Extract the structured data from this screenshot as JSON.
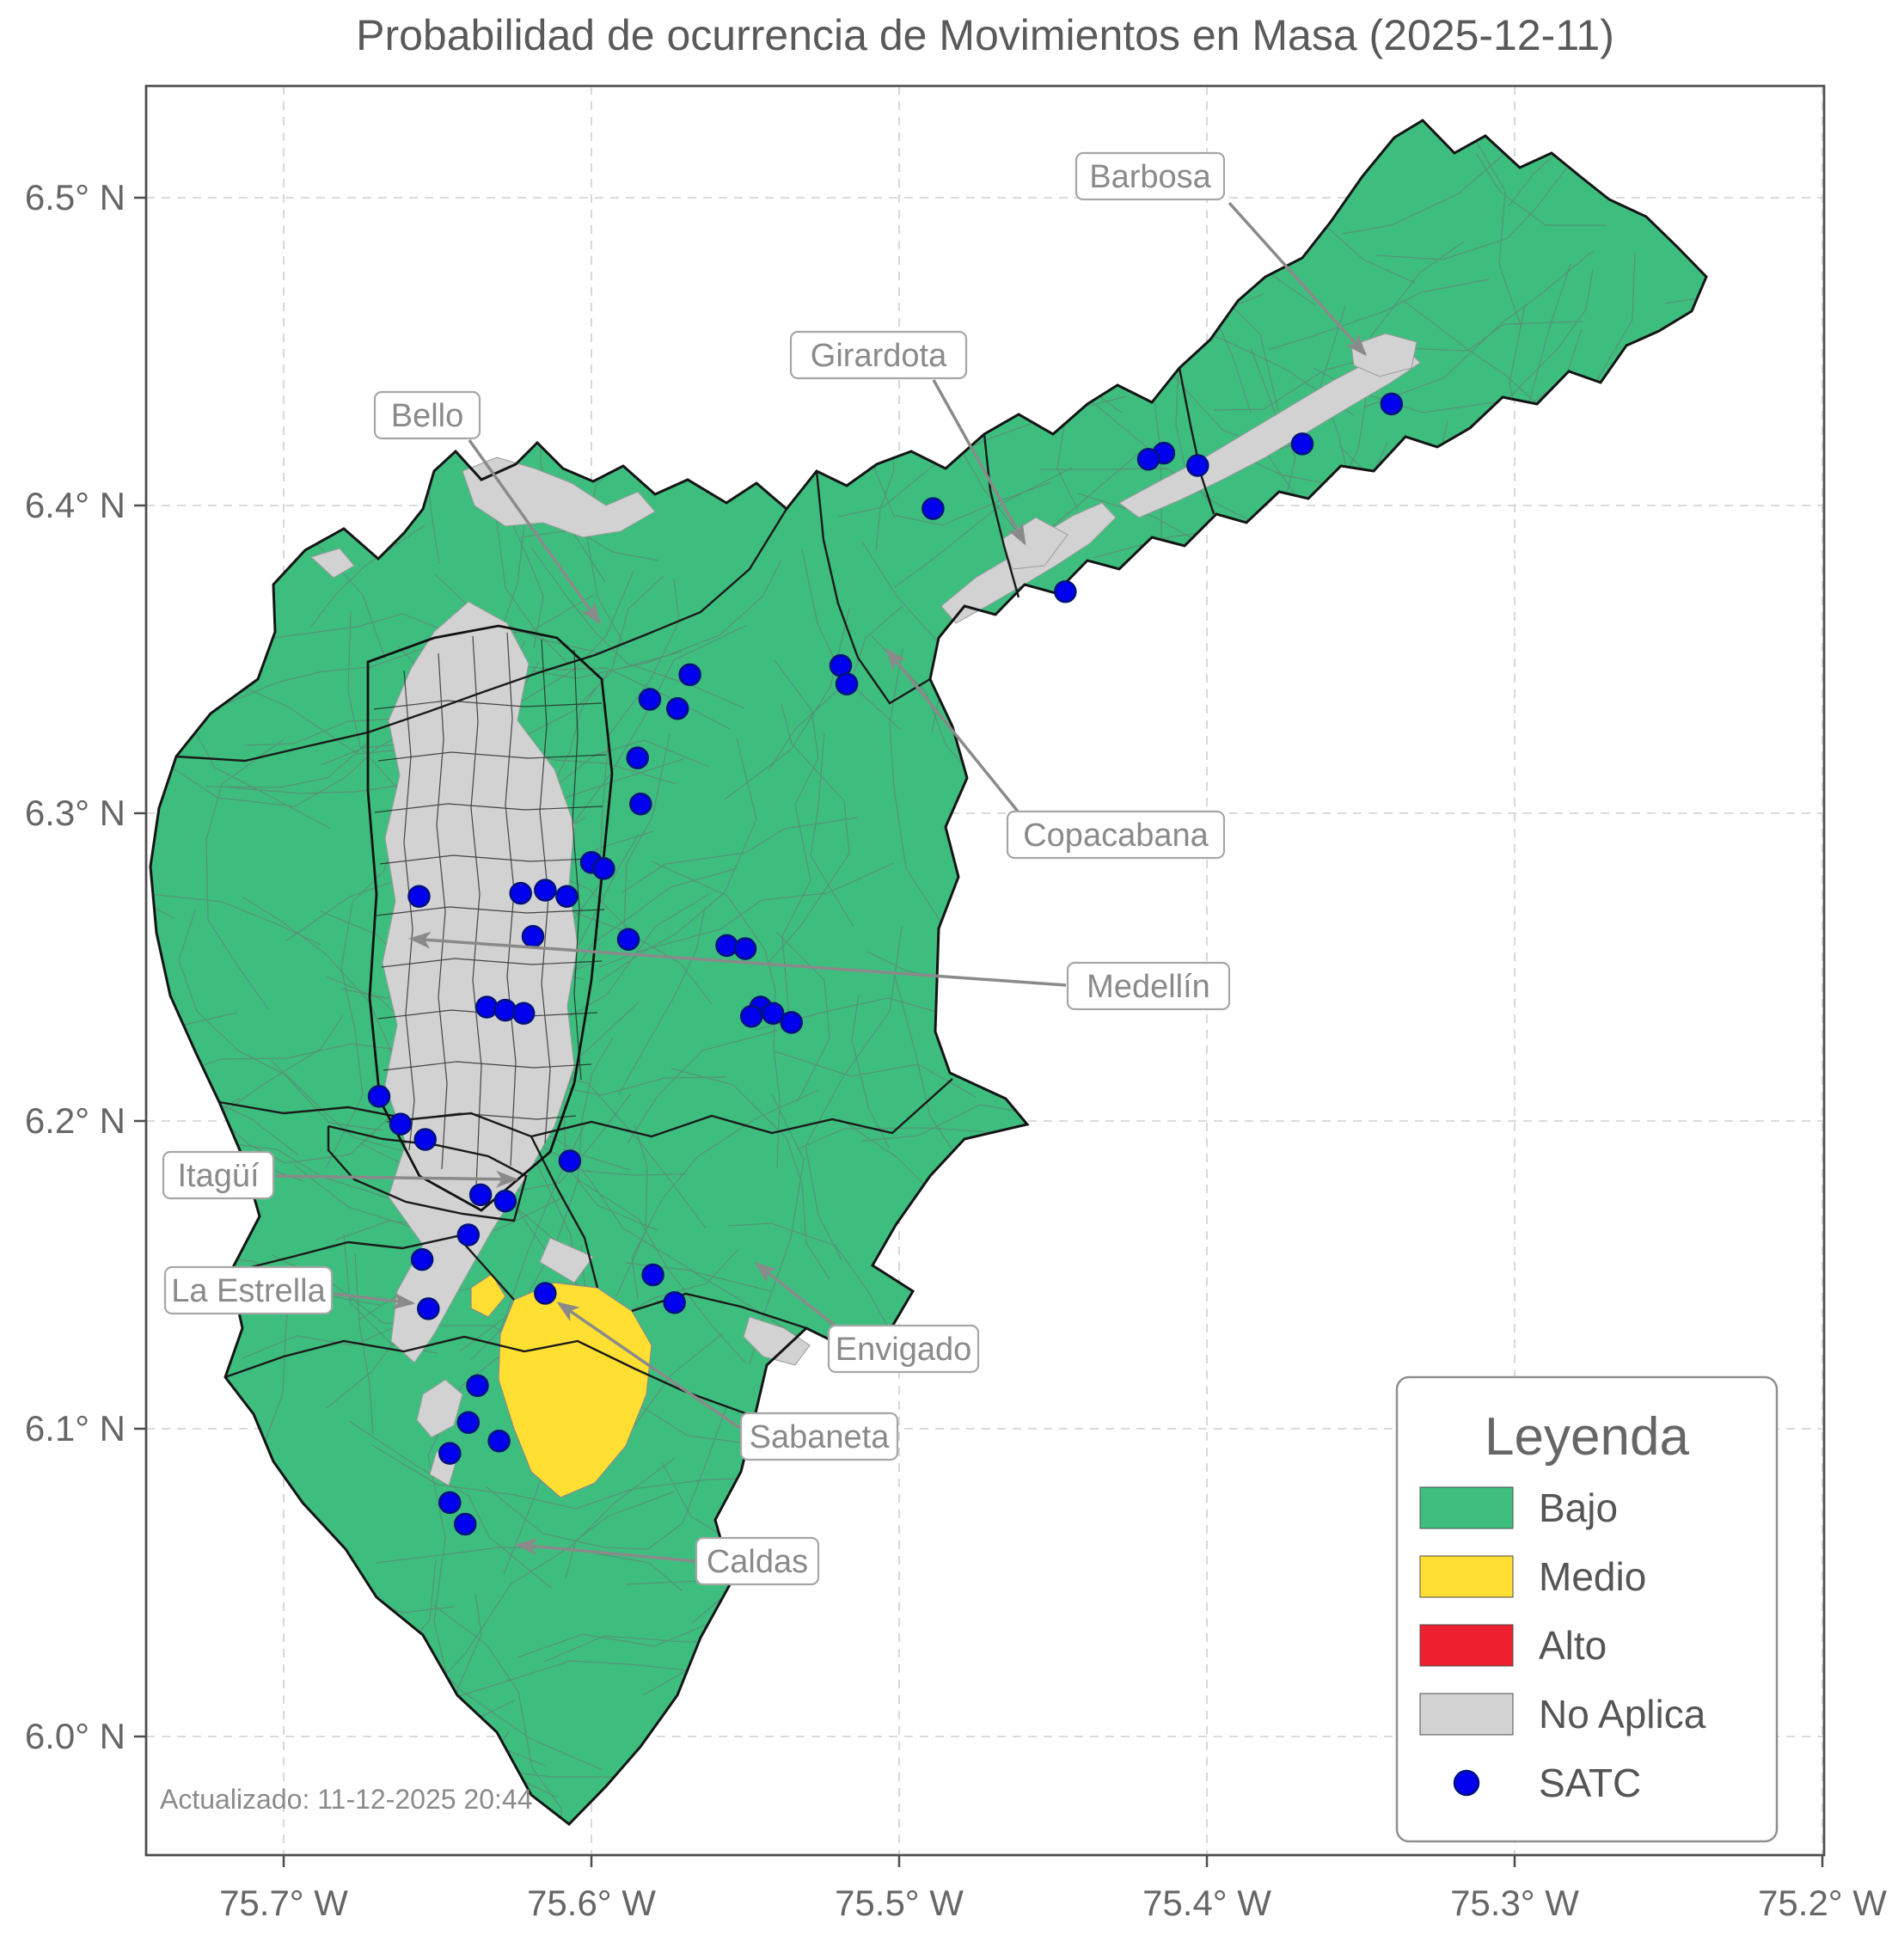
{
  "title": "Probabilidad de ocurrencia de Movimientos en Masa (2025-12-11)",
  "updated_text": "Actualizado: 11-12-2025 20:44",
  "axes": {
    "x_ticks": [
      "75.7° W",
      "75.6° W",
      "75.5° W",
      "75.4° W",
      "75.3° W",
      "75.2° W"
    ],
    "y_ticks": [
      "6.5° N",
      "6.4° N",
      "6.3° N",
      "6.2° N",
      "6.1° N",
      "6.0° N"
    ]
  },
  "legend": {
    "title": "Leyenda",
    "entries": [
      {
        "label": "Bajo"
      },
      {
        "label": "Medio"
      },
      {
        "label": "Alto"
      },
      {
        "label": "No Aplica"
      },
      {
        "label": "SATC"
      }
    ]
  },
  "annotations": [
    {
      "label": "Barbosa"
    },
    {
      "label": "Girardota"
    },
    {
      "label": "Bello"
    },
    {
      "label": "Copacabana"
    },
    {
      "label": "Medellín"
    },
    {
      "label": "Itagüí"
    },
    {
      "label": "La Estrella"
    },
    {
      "label": "Envigado"
    },
    {
      "label": "Sabaneta"
    },
    {
      "label": "Caldas"
    }
  ],
  "map": {
    "colors": {
      "bajo": "#3dbe7f",
      "medio": "#ffe032",
      "alto": "#ee2030",
      "no_aplica": "#d2d2d2",
      "satc": "#0000ee"
    },
    "satc_points": [
      {
        "lon": 75.34,
        "lat": 6.433
      },
      {
        "lon": 75.369,
        "lat": 6.42
      },
      {
        "lon": 75.414,
        "lat": 6.417
      },
      {
        "lon": 75.419,
        "lat": 6.415
      },
      {
        "lon": 75.403,
        "lat": 6.413
      },
      {
        "lon": 75.489,
        "lat": 6.399
      },
      {
        "lon": 75.446,
        "lat": 6.372
      },
      {
        "lon": 75.519,
        "lat": 6.348
      },
      {
        "lon": 75.517,
        "lat": 6.342
      },
      {
        "lon": 75.568,
        "lat": 6.345
      },
      {
        "lon": 75.581,
        "lat": 6.337
      },
      {
        "lon": 75.572,
        "lat": 6.334
      },
      {
        "lon": 75.585,
        "lat": 6.318
      },
      {
        "lon": 75.584,
        "lat": 6.303
      },
      {
        "lon": 75.6,
        "lat": 6.284
      },
      {
        "lon": 75.596,
        "lat": 6.282
      },
      {
        "lon": 75.623,
        "lat": 6.274
      },
      {
        "lon": 75.615,
        "lat": 6.275
      },
      {
        "lon": 75.608,
        "lat": 6.273
      },
      {
        "lon": 75.656,
        "lat": 6.273
      },
      {
        "lon": 75.619,
        "lat": 6.26
      },
      {
        "lon": 75.588,
        "lat": 6.259
      },
      {
        "lon": 75.556,
        "lat": 6.257
      },
      {
        "lon": 75.55,
        "lat": 6.256
      },
      {
        "lon": 75.545,
        "lat": 6.237
      },
      {
        "lon": 75.541,
        "lat": 6.235
      },
      {
        "lon": 75.548,
        "lat": 6.234
      },
      {
        "lon": 75.535,
        "lat": 6.232
      },
      {
        "lon": 75.634,
        "lat": 6.237
      },
      {
        "lon": 75.628,
        "lat": 6.236
      },
      {
        "lon": 75.622,
        "lat": 6.235
      },
      {
        "lon": 75.669,
        "lat": 6.208
      },
      {
        "lon": 75.662,
        "lat": 6.199
      },
      {
        "lon": 75.654,
        "lat": 6.194
      },
      {
        "lon": 75.607,
        "lat": 6.187
      },
      {
        "lon": 75.636,
        "lat": 6.176
      },
      {
        "lon": 75.628,
        "lat": 6.174
      },
      {
        "lon": 75.64,
        "lat": 6.163
      },
      {
        "lon": 75.655,
        "lat": 6.155
      },
      {
        "lon": 75.58,
        "lat": 6.15
      },
      {
        "lon": 75.573,
        "lat": 6.141
      },
      {
        "lon": 75.653,
        "lat": 6.139
      },
      {
        "lon": 75.615,
        "lat": 6.144
      },
      {
        "lon": 75.637,
        "lat": 6.114
      },
      {
        "lon": 75.64,
        "lat": 6.102
      },
      {
        "lon": 75.63,
        "lat": 6.096
      },
      {
        "lon": 75.646,
        "lat": 6.092
      },
      {
        "lon": 75.646,
        "lat": 6.076
      },
      {
        "lon": 75.641,
        "lat": 6.069
      }
    ]
  }
}
